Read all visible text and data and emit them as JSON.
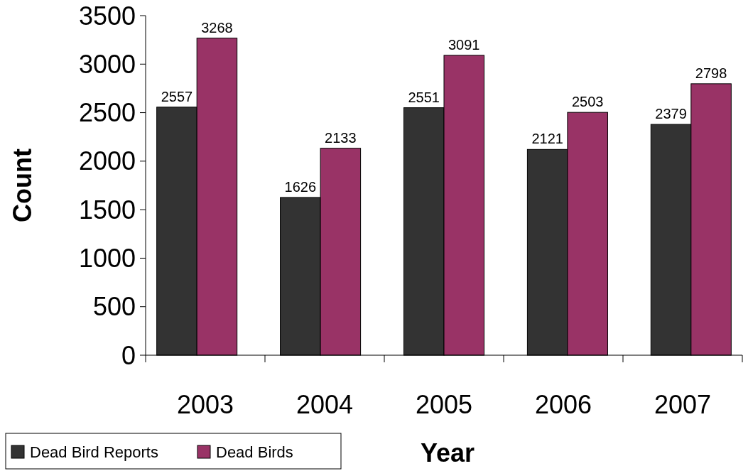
{
  "chart_data": {
    "type": "bar",
    "xlabel": "Year",
    "ylabel": "Count",
    "categories": [
      "2003",
      "2004",
      "2005",
      "2006",
      "2007"
    ],
    "series": [
      {
        "name": "Dead Bird Reports",
        "color": "#333333",
        "values": [
          2557,
          1626,
          2551,
          2121,
          2379
        ]
      },
      {
        "name": "Dead Birds",
        "color": "#993366",
        "values": [
          3268,
          2133,
          3091,
          2503,
          2798
        ]
      }
    ],
    "ylim": [
      0,
      3500
    ],
    "yticks": [
      0,
      500,
      1000,
      1500,
      2000,
      2500,
      3000,
      3500
    ],
    "grid": false,
    "legend": "bottom left",
    "data_labels": true
  }
}
